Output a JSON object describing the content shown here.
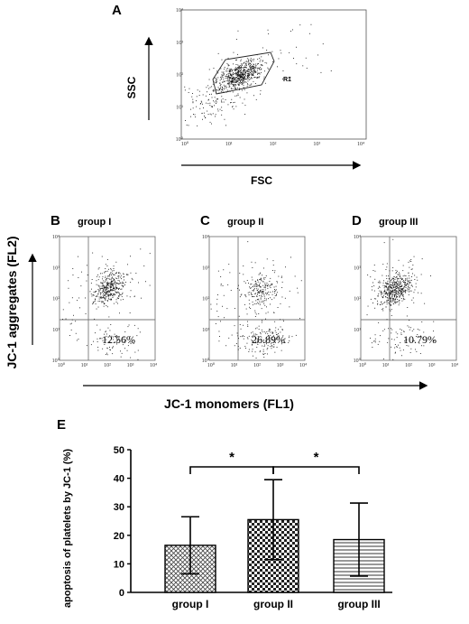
{
  "chart_data": [
    {
      "panel": "A",
      "type": "scatter",
      "xlabel": "FSC",
      "ylabel": "SSC",
      "x_scale": "log",
      "y_scale": "log",
      "xlim": [
        1,
        10000
      ],
      "ylim": [
        1,
        10000
      ],
      "x_ticks": [
        "10⁰",
        "10¹",
        "10²",
        "10³",
        "10⁴"
      ],
      "y_ticks": [
        "10⁰",
        "10¹",
        "10²",
        "10³",
        "10⁴"
      ],
      "gate": {
        "label": "R1"
      }
    },
    {
      "panel": "B",
      "type": "scatter",
      "title": "group I",
      "x_scale": "log",
      "y_scale": "log",
      "xlim": [
        1,
        10000
      ],
      "ylim": [
        1,
        10000
      ],
      "x_ticks": [
        "10⁰",
        "10¹",
        "10²",
        "10³",
        "10⁴"
      ],
      "y_ticks": [
        "10⁰",
        "10¹",
        "10²",
        "10³",
        "10⁴"
      ],
      "quadrant_value": "12.56%"
    },
    {
      "panel": "C",
      "type": "scatter",
      "title": "group II",
      "x_scale": "log",
      "y_scale": "log",
      "xlim": [
        1,
        10000
      ],
      "ylim": [
        1,
        10000
      ],
      "x_ticks": [
        "10⁰",
        "10¹",
        "10²",
        "10³",
        "10⁴"
      ],
      "y_ticks": [
        "10⁰",
        "10¹",
        "10²",
        "10³",
        "10⁴"
      ],
      "quadrant_value": "26.89%"
    },
    {
      "panel": "D",
      "type": "scatter",
      "title": "group III",
      "x_scale": "log",
      "y_scale": "log",
      "xlim": [
        1,
        10000
      ],
      "ylim": [
        1,
        10000
      ],
      "x_ticks": [
        "10⁰",
        "10¹",
        "10²",
        "10³",
        "10⁴"
      ],
      "y_ticks": [
        "10⁰",
        "10¹",
        "10²",
        "10³",
        "10⁴"
      ],
      "quadrant_value": "10.79%"
    },
    {
      "panel": "E",
      "type": "bar",
      "categories": [
        "group I",
        "group II",
        "group III"
      ],
      "values": [
        16.5,
        25.5,
        18.5
      ],
      "error": [
        10,
        14,
        12.8
      ],
      "ylabel": "apoptosis of platelets by JC-1 (%)",
      "ylim": [
        0,
        50
      ],
      "y_ticks": [
        0,
        10,
        20,
        30,
        40,
        50
      ],
      "significance": [
        {
          "from": 0,
          "to": 1,
          "label": "*"
        },
        {
          "from": 1,
          "to": 2,
          "label": "*"
        }
      ]
    }
  ],
  "shared_axes": {
    "ylabel": "JC-1 aggregates (FL2)",
    "xlabel": "JC-1 monomers (FL1)"
  }
}
